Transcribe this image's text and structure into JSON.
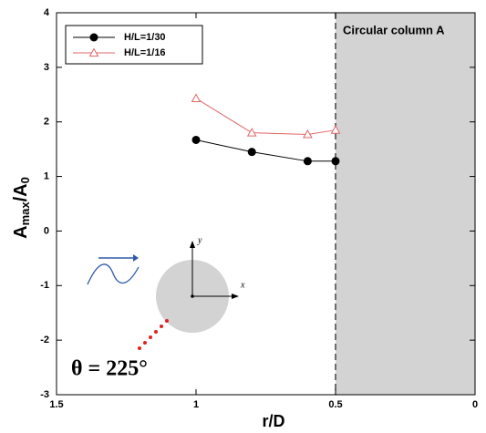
{
  "chart_data": {
    "type": "line",
    "xlabel": "r/D",
    "ylabel_parts": [
      "A",
      "max",
      "/A",
      "0"
    ],
    "x": [
      1,
      0.8,
      0.6,
      0.5
    ],
    "series": [
      {
        "name": "H/L=1/30",
        "color": "#000000",
        "marker": "circle",
        "values": [
          1.67,
          1.45,
          1.28,
          1.28
        ]
      },
      {
        "name": "H/L=1/16",
        "color": "#e06666",
        "marker": "triangle",
        "values": [
          2.43,
          1.8,
          1.77,
          1.85
        ]
      }
    ],
    "xlim": [
      1.5,
      0
    ],
    "ylim": [
      -3,
      4
    ],
    "xticks": [
      1.5,
      1,
      0.5,
      0
    ],
    "yticks": [
      -3,
      -2,
      -1,
      0,
      1,
      2,
      3,
      4
    ],
    "shaded_region": {
      "xlim": [
        0.5,
        0
      ],
      "color": "#d3d3d3",
      "label": "Circular column A"
    },
    "legend": "upper left",
    "inset": {
      "y_axis_label": "y",
      "x_axis_label": "x",
      "angle_label": "θ = 225°"
    }
  }
}
